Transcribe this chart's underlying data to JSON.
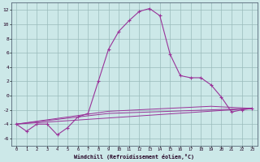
{
  "xlabel": "Windchill (Refroidissement éolien,°C)",
  "background_color": "#cce8e8",
  "line_color": "#993399",
  "grid_color": "#99bbbb",
  "xlim": [
    -0.5,
    23.5
  ],
  "ylim": [
    -7,
    13
  ],
  "yticks": [
    -6,
    -4,
    -2,
    0,
    2,
    4,
    6,
    8,
    10,
    12
  ],
  "xticks": [
    0,
    1,
    2,
    3,
    4,
    5,
    6,
    7,
    8,
    9,
    10,
    11,
    12,
    13,
    14,
    15,
    16,
    17,
    18,
    19,
    20,
    21,
    22,
    23
  ],
  "series": [
    {
      "x": [
        0,
        1,
        2,
        3,
        4,
        5,
        6,
        7,
        8,
        9,
        10,
        11,
        12,
        13,
        14,
        15,
        16,
        17,
        18,
        19,
        20,
        21,
        22,
        23
      ],
      "y": [
        -4,
        -5,
        -4,
        -4,
        -5.5,
        -4.5,
        -3,
        -2.5,
        2,
        6.5,
        9,
        10.5,
        11.8,
        12.2,
        11.2,
        5.8,
        2.8,
        2.5,
        2.5,
        1.5,
        -0.2,
        -2.3,
        -2,
        -1.8
      ]
    },
    {
      "x": [
        0,
        23
      ],
      "y": [
        -4,
        -1.8
      ]
    },
    {
      "x": [
        0,
        9,
        23
      ],
      "y": [
        -4,
        -2.5,
        -1.8
      ]
    },
    {
      "x": [
        0,
        9,
        19,
        23
      ],
      "y": [
        -4,
        -2.2,
        -1.5,
        -1.8
      ]
    }
  ]
}
